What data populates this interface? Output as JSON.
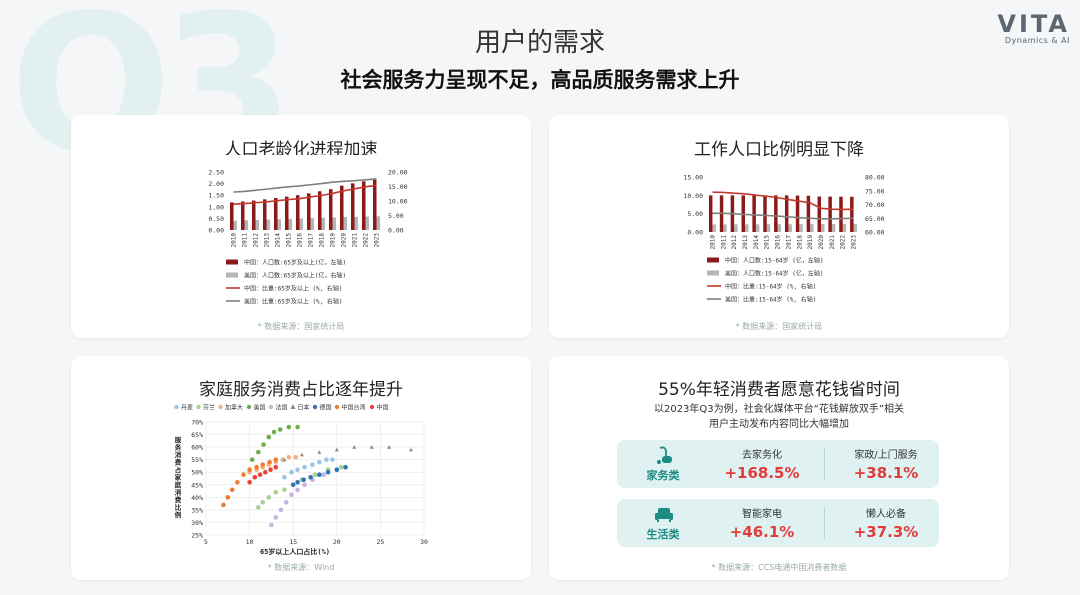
{
  "header": {
    "title": "用户的需求",
    "subtitle": "社会服务力呈现不足，高品质服务需求上升",
    "bg_text": "Q3"
  },
  "logo": {
    "mark": "VITA",
    "sub": "Dynamics & AI"
  },
  "cards": {
    "aging": {
      "title": "人口老龄化进程加速",
      "source": "* 数据来源：国家统计局"
    },
    "working": {
      "title": "工作人口比例明显下降",
      "source": "* 数据来源：国家统计局"
    },
    "household": {
      "title": "家庭服务消费占比逐年提升",
      "source": "* 数据来源：Wind"
    },
    "young": {
      "title": "55%年轻消费者愿意花钱省时间",
      "desc_line1": "以2023年Q3为例，社会化媒体平台“花钱解放双手”相关",
      "desc_line2": "用户主动发布内容同比大幅增加",
      "rows": [
        {
          "category": "家务类",
          "icon": "vacuum-cleaner-icon",
          "items": [
            {
              "label": "去家务化",
              "value": "+168.5%"
            },
            {
              "label": "家政/上门服务",
              "value": "+38.1%"
            }
          ]
        },
        {
          "category": "生活类",
          "icon": "sofa-icon",
          "items": [
            {
              "label": "智能家电",
              "value": "+46.1%"
            },
            {
              "label": "懒人必备",
              "value": "+37.3%"
            }
          ]
        }
      ],
      "source": "* 数据来源：CCS电通中国消费者数据"
    }
  },
  "chart_data": [
    {
      "type": "bar",
      "categories": [
        "2010",
        "2011",
        "2012",
        "2013",
        "2014",
        "2015",
        "2016",
        "2017",
        "2018",
        "2019",
        "2020",
        "2021",
        "2022",
        "2023"
      ],
      "series": [
        {
          "name": "中国：人口数:65岁及以上(亿，左轴)",
          "color": "#8b1a1a",
          "values": [
            1.19,
            1.23,
            1.27,
            1.32,
            1.38,
            1.44,
            1.5,
            1.58,
            1.67,
            1.76,
            1.91,
            2.01,
            2.1,
            2.17
          ]
        },
        {
          "name": "美国：人口数:65岁及以上(亿，右轴)",
          "color": "#b5b5b5",
          "values": [
            0.4,
            0.42,
            0.43,
            0.45,
            0.46,
            0.48,
            0.5,
            0.51,
            0.53,
            0.54,
            0.56,
            0.57,
            0.58,
            0.59
          ]
        },
        {
          "name": "中国：比重:65岁及以上 (%, 右轴)",
          "color": "#c0392b",
          "values": [
            8.9,
            9.1,
            9.4,
            9.7,
            10.1,
            10.5,
            10.8,
            11.4,
            11.9,
            12.6,
            13.5,
            14.2,
            14.9,
            15.4
          ]
        },
        {
          "name": "美国：比重:65岁及以上 (%, 右轴)",
          "color": "#7f7f7f",
          "values": [
            13.1,
            13.3,
            13.7,
            14.1,
            14.5,
            14.9,
            15.2,
            15.6,
            16.0,
            16.5,
            16.8,
            17.0,
            17.3,
            17.6
          ]
        }
      ],
      "y_left": {
        "ticks": [
          "2.50",
          "2.00",
          "1.50",
          "1.00",
          "0.50",
          "0.00"
        ],
        "range": [
          0,
          2.5
        ]
      },
      "y_right": {
        "ticks": [
          "20.00",
          "15.00",
          "10.00",
          "5.00",
          "0.00"
        ],
        "range": [
          0,
          20
        ]
      }
    },
    {
      "type": "bar",
      "categories": [
        "2010",
        "2011",
        "2012",
        "2013",
        "2014",
        "2015",
        "2016",
        "2017",
        "2018",
        "2019",
        "2020",
        "2021",
        "2022",
        "2023"
      ],
      "series": [
        {
          "name": "中国：人口数:15-64岁 (亿，左轴)",
          "color": "#8b1a1a",
          "values": [
            10.0,
            10.0,
            10.0,
            10.0,
            10.0,
            10.0,
            10.0,
            9.98,
            9.94,
            9.89,
            9.68,
            9.65,
            9.62,
            9.61
          ]
        },
        {
          "name": "美国：人口数:15-64岁 (亿，左轴)",
          "color": "#b5b5b5",
          "values": [
            2.05,
            2.07,
            2.08,
            2.09,
            2.1,
            2.11,
            2.12,
            2.12,
            2.13,
            2.13,
            2.14,
            2.14,
            2.15,
            2.15
          ]
        },
        {
          "name": "中国：比重:15-64岁 (%, 右轴)",
          "color": "#c0392b",
          "values": [
            74.5,
            74.4,
            74.1,
            73.9,
            73.4,
            73.0,
            72.5,
            71.8,
            71.2,
            70.6,
            68.6,
            68.3,
            68.2,
            68.3
          ]
        },
        {
          "name": "美国：比重:15-64岁 (%, 右轴)",
          "color": "#7f7f7f",
          "values": [
            66.8,
            66.8,
            66.6,
            66.4,
            66.2,
            66.0,
            65.8,
            65.5,
            65.2,
            65.0,
            64.8,
            64.8,
            64.9,
            65.0
          ]
        }
      ],
      "y_left": {
        "ticks": [
          "15.00",
          "10.00",
          "5.00",
          "0.00"
        ],
        "range": [
          0,
          15
        ]
      },
      "y_right": {
        "ticks": [
          "80.00",
          "75.00",
          "70.00",
          "65.00",
          "60.00"
        ],
        "range": [
          60,
          80
        ]
      }
    },
    {
      "type": "scatter",
      "xlabel": "65岁以上人口占比(%)",
      "ylabel": "服务消费占家庭消费比例",
      "x_ticks": [
        "5",
        "10",
        "15",
        "20",
        "25",
        "30"
      ],
      "y_ticks": [
        "70%",
        "65%",
        "60%",
        "55%",
        "50%",
        "45%",
        "40%",
        "35%",
        "30%",
        "25%"
      ],
      "xlim": [
        5,
        30
      ],
      "ylim": [
        25,
        70
      ],
      "series": [
        {
          "name": "丹麦",
          "color": "#9dc3e6",
          "points": [
            [
              14,
              48
            ],
            [
              14.8,
              50
            ],
            [
              15.5,
              51
            ],
            [
              16.3,
              52
            ],
            [
              17.2,
              53
            ],
            [
              18,
              54
            ],
            [
              18.8,
              55
            ],
            [
              19.5,
              55
            ]
          ]
        },
        {
          "name": "芬兰",
          "color": "#a9d18e",
          "points": [
            [
              11,
              36
            ],
            [
              11.5,
              38
            ],
            [
              12.2,
              40
            ],
            [
              13,
              42
            ],
            [
              14,
              43
            ],
            [
              15,
              45
            ],
            [
              16,
              47
            ],
            [
              17.5,
              49
            ],
            [
              19,
              51
            ],
            [
              20.5,
              52
            ]
          ]
        },
        {
          "name": "加拿大",
          "color": "#f4b183",
          "points": [
            [
              10,
              50
            ],
            [
              10.8,
              51
            ],
            [
              11.5,
              52
            ],
            [
              12.2,
              53
            ],
            [
              13,
              54
            ],
            [
              13.8,
              55
            ],
            [
              14.5,
              56
            ],
            [
              15.3,
              56
            ]
          ]
        },
        {
          "name": "美国",
          "color": "#70ad47",
          "points": [
            [
              10.3,
              55
            ],
            [
              11,
              58
            ],
            [
              11.6,
              61
            ],
            [
              12.2,
              64
            ],
            [
              12.8,
              66
            ],
            [
              13.5,
              67
            ],
            [
              14.5,
              68
            ],
            [
              15.5,
              68
            ]
          ]
        },
        {
          "name": "法国",
          "color": "#c9b3e0",
          "points": [
            [
              12.5,
              29
            ],
            [
              13,
              32
            ],
            [
              13.6,
              35
            ],
            [
              14.2,
              38
            ],
            [
              14.8,
              41
            ],
            [
              15.5,
              43
            ],
            [
              16.3,
              45
            ],
            [
              17.2,
              47
            ],
            [
              18.5,
              49
            ],
            [
              20,
              51
            ]
          ]
        },
        {
          "name": "日本",
          "color": "#8c8c8c",
          "points": [
            [
              14,
              55
            ],
            [
              16,
              57
            ],
            [
              18,
              58
            ],
            [
              20,
              59
            ],
            [
              22,
              60
            ],
            [
              24,
              60
            ],
            [
              26,
              60
            ],
            [
              28.5,
              59
            ]
          ]
        },
        {
          "name": "德国",
          "color": "#2e75b6",
          "points": [
            [
              15,
              45
            ],
            [
              15.5,
              46
            ],
            [
              16.2,
              47
            ],
            [
              17,
              48
            ],
            [
              18,
              49
            ],
            [
              19,
              50
            ],
            [
              20,
              51
            ],
            [
              21,
              52
            ]
          ]
        },
        {
          "name": "中国台湾",
          "color": "#ed7d31",
          "points": [
            [
              7,
              37
            ],
            [
              7.5,
              40
            ],
            [
              8,
              43
            ],
            [
              8.6,
              46
            ],
            [
              9.3,
              49
            ],
            [
              10,
              51
            ],
            [
              10.8,
              52
            ],
            [
              11.5,
              53
            ],
            [
              12.3,
              54
            ],
            [
              13,
              55
            ]
          ]
        },
        {
          "name": "中国",
          "color": "#e8423a",
          "points": [
            [
              10,
              46
            ],
            [
              10.6,
              48
            ],
            [
              11.2,
              49
            ],
            [
              11.8,
              50
            ],
            [
              12.4,
              51
            ],
            [
              13,
              52
            ]
          ]
        }
      ]
    }
  ]
}
